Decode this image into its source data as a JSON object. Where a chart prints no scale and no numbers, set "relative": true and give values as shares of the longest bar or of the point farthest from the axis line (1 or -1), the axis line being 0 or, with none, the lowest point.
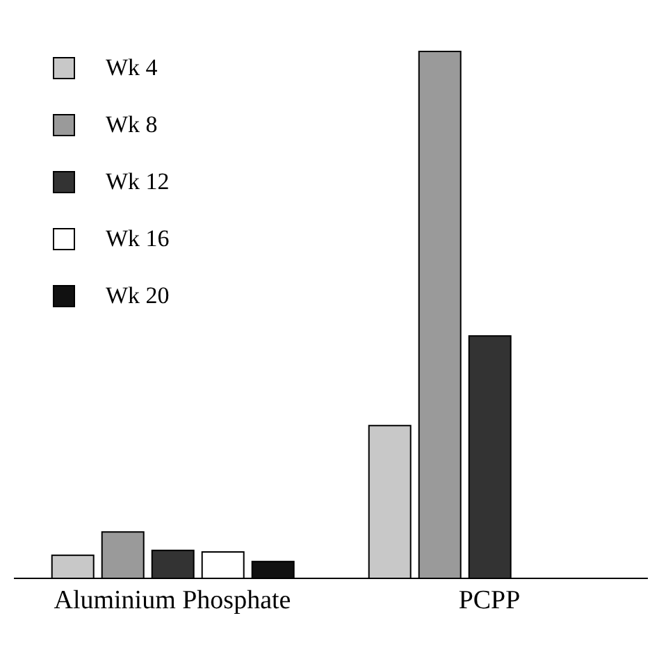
{
  "chart_data": {
    "type": "bar",
    "relative": true,
    "categories": [
      "Aluminium Phosphate",
      "PCPP"
    ],
    "series": [
      {
        "name": "Wk 4",
        "color": "#c8c8c8",
        "values": [
          0.044,
          0.29
        ]
      },
      {
        "name": "Wk 8",
        "color": "#9a9a9a",
        "values": [
          0.088,
          1
        ]
      },
      {
        "name": "Wk 12",
        "color": "#333333",
        "values": [
          0.053,
          0.46
        ]
      },
      {
        "name": "Wk 16",
        "color": "#ffffff",
        "values": [
          0.05,
          null
        ]
      },
      {
        "name": "Wk 20",
        "color": "#111111",
        "values": [
          0.032,
          null
        ]
      }
    ],
    "legend": "top left"
  }
}
